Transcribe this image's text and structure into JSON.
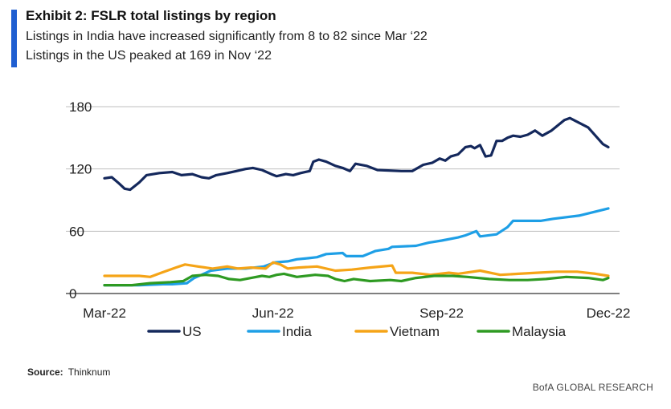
{
  "header": {
    "title": "Exhibit 2: FSLR total listings by region",
    "subtitle_1": "Listings in India have increased significantly from 8 to 82 since Mar ‘22",
    "subtitle_2": "Listings in the US peaked at 169 in Nov ‘22"
  },
  "footer": {
    "source_label": "Source:",
    "source_value": "Thinknum",
    "brand": "BofA GLOBAL RESEARCH"
  },
  "colors": {
    "accent": "#1f5fd1",
    "US": "#14285c",
    "India": "#1e9fe6",
    "Vietnam": "#f5a417",
    "Malaysia": "#2e9a22",
    "grid": "#bfbfbf"
  },
  "chart_data": {
    "type": "line",
    "xlabel": "",
    "ylabel": "",
    "ylim": [
      0,
      180
    ],
    "yticks": [
      0,
      60,
      120,
      180
    ],
    "xlim": [
      "2022-03-01",
      "2022-12-01"
    ],
    "xticks": [
      {
        "date": "2022-03-01",
        "label": "Mar-22"
      },
      {
        "date": "2022-06-01",
        "label": "Jun-22"
      },
      {
        "date": "2022-09-01",
        "label": "Sep-22"
      },
      {
        "date": "2022-12-01",
        "label": "Dec-22"
      }
    ],
    "grid": "horizontal",
    "legend": "bottom",
    "series": [
      {
        "name": "US",
        "points": [
          [
            "2022-03-01",
            111
          ],
          [
            "2022-03-05",
            112
          ],
          [
            "2022-03-09",
            106
          ],
          [
            "2022-03-12",
            101
          ],
          [
            "2022-03-15",
            100
          ],
          [
            "2022-03-20",
            107
          ],
          [
            "2022-03-24",
            114
          ],
          [
            "2022-03-31",
            116
          ],
          [
            "2022-04-07",
            117
          ],
          [
            "2022-04-12",
            114
          ],
          [
            "2022-04-18",
            115
          ],
          [
            "2022-04-23",
            112
          ],
          [
            "2022-04-27",
            111
          ],
          [
            "2022-05-01",
            114
          ],
          [
            "2022-05-07",
            116
          ],
          [
            "2022-05-12",
            118
          ],
          [
            "2022-05-17",
            120
          ],
          [
            "2022-05-21",
            121
          ],
          [
            "2022-05-26",
            119
          ],
          [
            "2022-05-31",
            115
          ],
          [
            "2022-06-03",
            113
          ],
          [
            "2022-06-08",
            115
          ],
          [
            "2022-06-12",
            114
          ],
          [
            "2022-06-16",
            116
          ],
          [
            "2022-06-21",
            118
          ],
          [
            "2022-06-23",
            127
          ],
          [
            "2022-06-26",
            129
          ],
          [
            "2022-06-30",
            127
          ],
          [
            "2022-07-05",
            123
          ],
          [
            "2022-07-09",
            121
          ],
          [
            "2022-07-13",
            118
          ],
          [
            "2022-07-16",
            125
          ],
          [
            "2022-07-22",
            123
          ],
          [
            "2022-07-28",
            119
          ],
          [
            "2022-08-10",
            118
          ],
          [
            "2022-08-16",
            118
          ],
          [
            "2022-08-22",
            124
          ],
          [
            "2022-08-27",
            126
          ],
          [
            "2022-08-31",
            130
          ],
          [
            "2022-09-03",
            128
          ],
          [
            "2022-09-06",
            132
          ],
          [
            "2022-09-10",
            134
          ],
          [
            "2022-09-14",
            141
          ],
          [
            "2022-09-17",
            142
          ],
          [
            "2022-09-19",
            140
          ],
          [
            "2022-09-22",
            143
          ],
          [
            "2022-09-25",
            132
          ],
          [
            "2022-09-28",
            133
          ],
          [
            "2022-10-01",
            147
          ],
          [
            "2022-10-04",
            147
          ],
          [
            "2022-10-07",
            150
          ],
          [
            "2022-10-10",
            152
          ],
          [
            "2022-10-14",
            151
          ],
          [
            "2022-10-18",
            153
          ],
          [
            "2022-10-22",
            157
          ],
          [
            "2022-10-26",
            152
          ],
          [
            "2022-10-31",
            157
          ],
          [
            "2022-11-07",
            167
          ],
          [
            "2022-11-10",
            169
          ],
          [
            "2022-11-20",
            160
          ],
          [
            "2022-11-28",
            144
          ],
          [
            "2022-12-01",
            141
          ]
        ]
      },
      {
        "name": "India",
        "points": [
          [
            "2022-03-01",
            8
          ],
          [
            "2022-03-20",
            8
          ],
          [
            "2022-04-02",
            9
          ],
          [
            "2022-04-07",
            9
          ],
          [
            "2022-04-15",
            10
          ],
          [
            "2022-04-19",
            15
          ],
          [
            "2022-04-23",
            18
          ],
          [
            "2022-04-28",
            22
          ],
          [
            "2022-05-07",
            24
          ],
          [
            "2022-05-17",
            24
          ],
          [
            "2022-05-27",
            26
          ],
          [
            "2022-06-02",
            30
          ],
          [
            "2022-06-09",
            31
          ],
          [
            "2022-06-14",
            33
          ],
          [
            "2022-06-20",
            34
          ],
          [
            "2022-06-25",
            35
          ],
          [
            "2022-06-30",
            38
          ],
          [
            "2022-07-09",
            39
          ],
          [
            "2022-07-11",
            36
          ],
          [
            "2022-07-20",
            36
          ],
          [
            "2022-07-27",
            41
          ],
          [
            "2022-08-03",
            43
          ],
          [
            "2022-08-05",
            45
          ],
          [
            "2022-08-18",
            46
          ],
          [
            "2022-08-25",
            49
          ],
          [
            "2022-09-01",
            51
          ],
          [
            "2022-09-10",
            54
          ],
          [
            "2022-09-14",
            56
          ],
          [
            "2022-09-20",
            60
          ],
          [
            "2022-09-22",
            55
          ],
          [
            "2022-10-01",
            57
          ],
          [
            "2022-10-07",
            64
          ],
          [
            "2022-10-10",
            70
          ],
          [
            "2022-10-25",
            70
          ],
          [
            "2022-11-01",
            72
          ],
          [
            "2022-11-15",
            75
          ],
          [
            "2022-12-01",
            82
          ]
        ]
      },
      {
        "name": "Vietnam",
        "points": [
          [
            "2022-03-01",
            17
          ],
          [
            "2022-03-20",
            17
          ],
          [
            "2022-03-26",
            16
          ],
          [
            "2022-04-01",
            20
          ],
          [
            "2022-04-09",
            25
          ],
          [
            "2022-04-14",
            28
          ],
          [
            "2022-04-21",
            26
          ],
          [
            "2022-04-29",
            24
          ],
          [
            "2022-05-07",
            26
          ],
          [
            "2022-05-13",
            24
          ],
          [
            "2022-05-20",
            25
          ],
          [
            "2022-05-28",
            24
          ],
          [
            "2022-06-01",
            30
          ],
          [
            "2022-06-05",
            28
          ],
          [
            "2022-06-09",
            24
          ],
          [
            "2022-06-15",
            25
          ],
          [
            "2022-06-25",
            26
          ],
          [
            "2022-07-05",
            22
          ],
          [
            "2022-07-14",
            23
          ],
          [
            "2022-07-24",
            25
          ],
          [
            "2022-08-05",
            27
          ],
          [
            "2022-08-07",
            20
          ],
          [
            "2022-08-16",
            20
          ],
          [
            "2022-08-26",
            18
          ],
          [
            "2022-09-05",
            20
          ],
          [
            "2022-09-10",
            19
          ],
          [
            "2022-09-22",
            22
          ],
          [
            "2022-10-03",
            18
          ],
          [
            "2022-10-13",
            19
          ],
          [
            "2022-10-23",
            20
          ],
          [
            "2022-11-03",
            21
          ],
          [
            "2022-11-14",
            21
          ],
          [
            "2022-11-24",
            19
          ],
          [
            "2022-12-01",
            17
          ]
        ]
      },
      {
        "name": "Malaysia",
        "points": [
          [
            "2022-03-01",
            8
          ],
          [
            "2022-03-16",
            8
          ],
          [
            "2022-03-26",
            10
          ],
          [
            "2022-04-06",
            11
          ],
          [
            "2022-04-13",
            12
          ],
          [
            "2022-04-18",
            17
          ],
          [
            "2022-04-25",
            18
          ],
          [
            "2022-05-02",
            17
          ],
          [
            "2022-05-08",
            14
          ],
          [
            "2022-05-14",
            13
          ],
          [
            "2022-05-20",
            15
          ],
          [
            "2022-05-26",
            17
          ],
          [
            "2022-05-30",
            16
          ],
          [
            "2022-06-03",
            18
          ],
          [
            "2022-06-07",
            19
          ],
          [
            "2022-06-14",
            16
          ],
          [
            "2022-06-24",
            18
          ],
          [
            "2022-07-01",
            17
          ],
          [
            "2022-07-05",
            14
          ],
          [
            "2022-07-10",
            12
          ],
          [
            "2022-07-15",
            14
          ],
          [
            "2022-07-24",
            12
          ],
          [
            "2022-08-04",
            13
          ],
          [
            "2022-08-10",
            12
          ],
          [
            "2022-08-18",
            15
          ],
          [
            "2022-08-28",
            17
          ],
          [
            "2022-09-07",
            17
          ],
          [
            "2022-09-15",
            16
          ],
          [
            "2022-09-27",
            14
          ],
          [
            "2022-10-08",
            13
          ],
          [
            "2022-10-18",
            13
          ],
          [
            "2022-10-28",
            14
          ],
          [
            "2022-11-08",
            16
          ],
          [
            "2022-11-20",
            15
          ],
          [
            "2022-11-28",
            13
          ],
          [
            "2022-12-01",
            15
          ]
        ]
      }
    ]
  }
}
